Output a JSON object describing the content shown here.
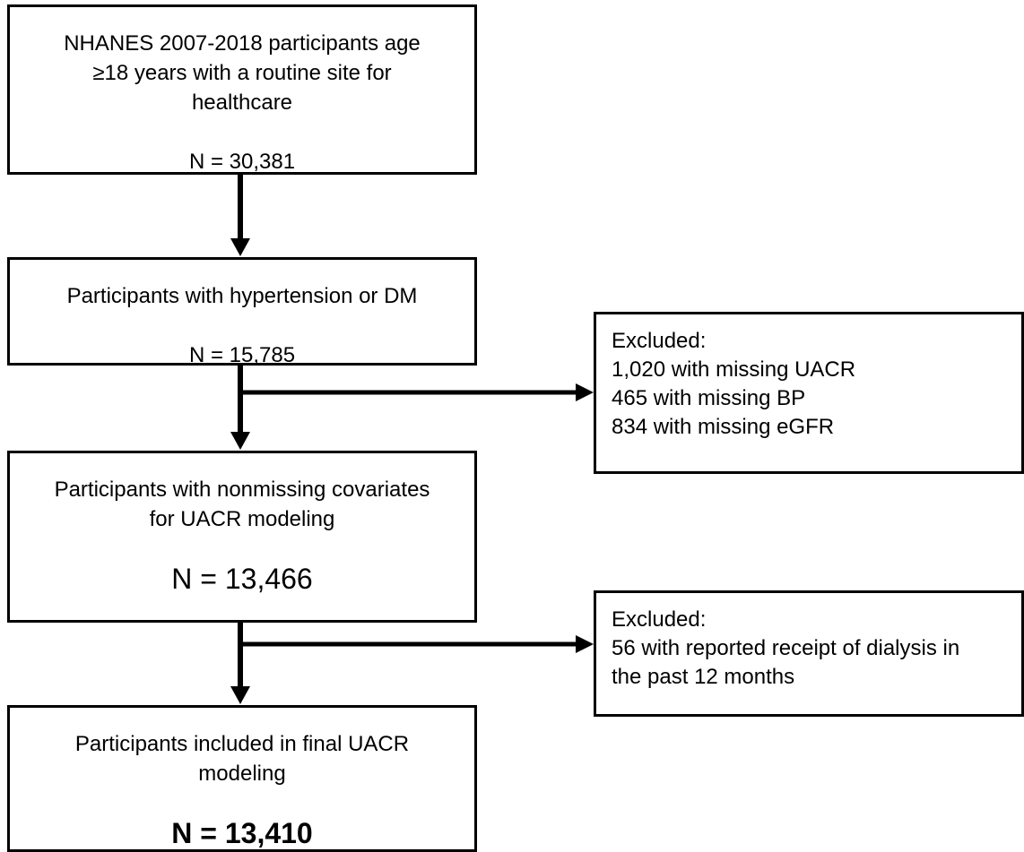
{
  "flowchart": {
    "box1": {
      "lines": [
        "NHANES 2007-2018 participants age",
        "≥18 years with a routine site for",
        "healthcare"
      ],
      "n": "N = 30,381"
    },
    "box2": {
      "lines": [
        "Participants with hypertension or DM"
      ],
      "n": "N = 15,785"
    },
    "box3": {
      "lines": [
        "Participants with nonmissing covariates",
        "for UACR modeling"
      ],
      "n": "N = 13,466"
    },
    "box4": {
      "lines": [
        "Participants included in final UACR",
        "modeling"
      ],
      "n": "N = 13,410"
    },
    "exclusion1": {
      "lines": [
        "Excluded:",
        "1,020 with missing UACR",
        "465 with missing BP",
        "834 with missing eGFR"
      ]
    },
    "exclusion2": {
      "lines": [
        "Excluded:",
        "56 with reported receipt of dialysis in",
        "the past 12 months"
      ]
    }
  },
  "colors": {
    "stroke": "#000000",
    "background": "#ffffff"
  }
}
